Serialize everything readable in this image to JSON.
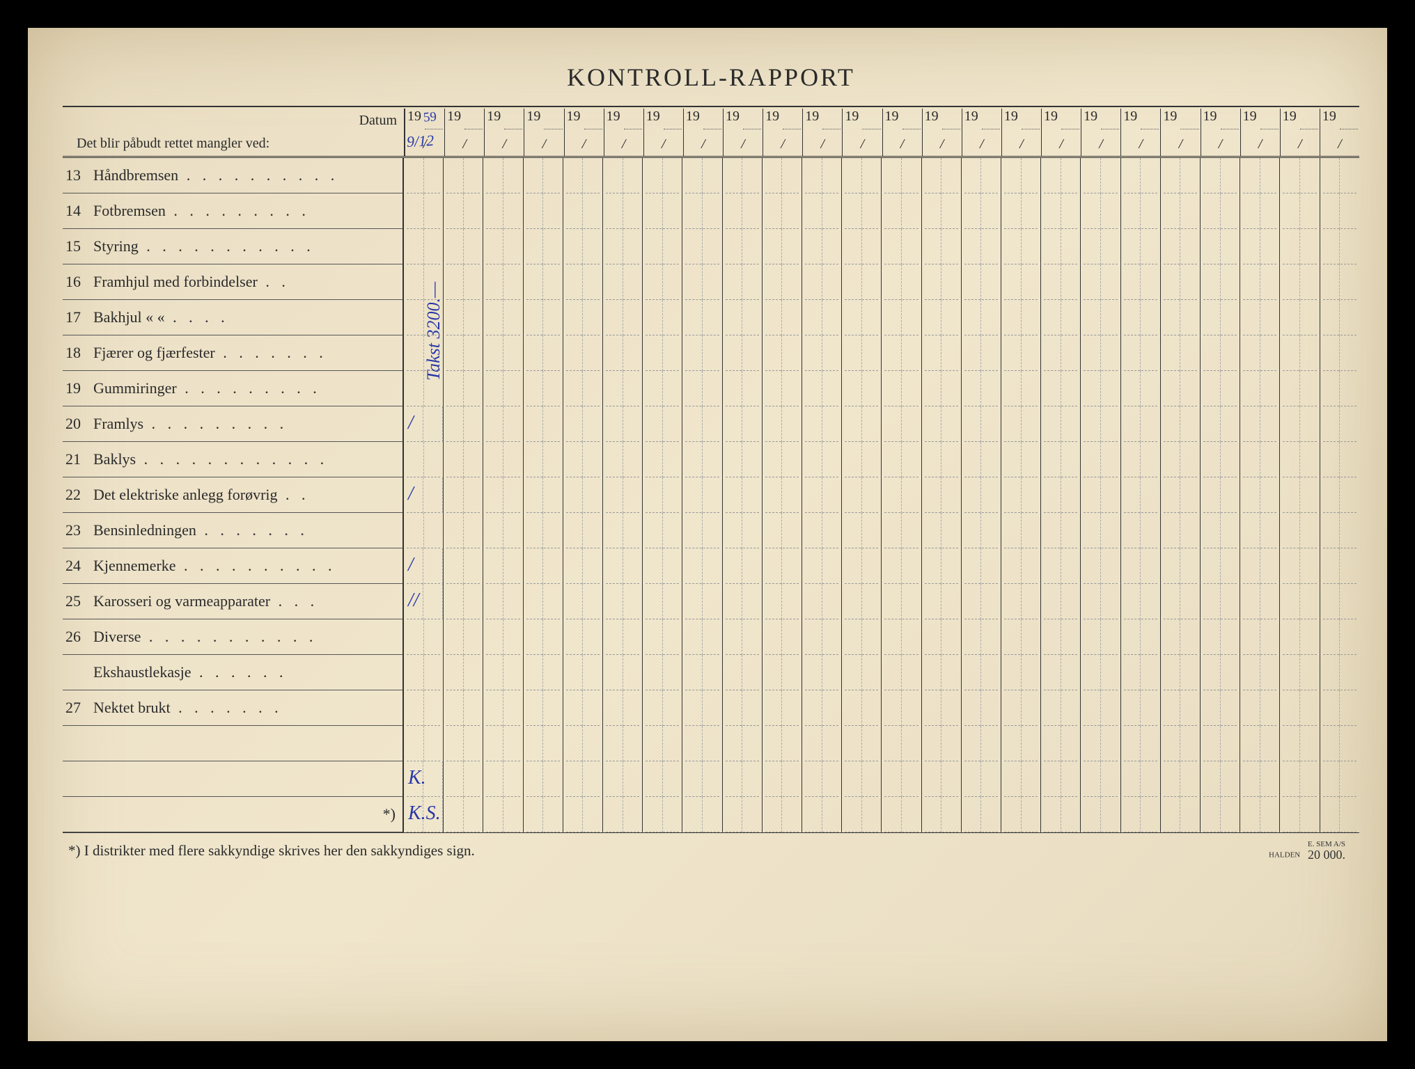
{
  "title": "KONTROLL-RAPPORT",
  "header": {
    "datum_label": "Datum",
    "mangler_label": "Det blir påbudt rettet mangler ved:",
    "year_prefix": "19",
    "date_slash": "/",
    "num_date_columns": 24,
    "handwritten_year_suffix": "59",
    "handwritten_date": "9/12"
  },
  "rows": [
    {
      "num": "13",
      "text": "Håndbremsen",
      "dots": " .  .  .  .  .  .  .  .  .  ."
    },
    {
      "num": "14",
      "text": "Fotbremsen",
      "dots": "  .  .  .  .    .  .  .  .  ."
    },
    {
      "num": "15",
      "text": "Styring",
      "dots": "   .  .  .  .  .  .  .  .  .  .  ."
    },
    {
      "num": "16",
      "text": "Framhjul med forbindelser",
      "dots": "   .     ."
    },
    {
      "num": "17",
      "text": "Bakhjul       «           «",
      "dots": "      .  .  .  ."
    },
    {
      "num": "18",
      "text": "Fjærer og fjærfester",
      "dots": " .  .  .  .  .  .  ."
    },
    {
      "num": "19",
      "text": "Gummiringer",
      "dots": " .     .  .  .  .  .  .  .  ."
    },
    {
      "num": "20",
      "text": "Framlys",
      "dots": " .    .  .  .  .  .  .  .  ."
    },
    {
      "num": "21",
      "text": "Baklys",
      "dots": " .  .  .  .  .  .  .  .  .  .  .  ."
    },
    {
      "num": "22",
      "text": "Det elektriske anlegg forøvrig",
      "dots": "   .  ."
    },
    {
      "num": "23",
      "text": "Bensinledningen",
      "dots": "  .  .  .  .  .  .  ."
    },
    {
      "num": "24",
      "text": "Kjennemerke",
      "dots": " .  .  .  .  .  .  .  .  .  ."
    },
    {
      "num": "25",
      "text": "Karosseri og varmeapparater",
      "dots": " .  .  ."
    },
    {
      "num": "26",
      "text": "Diverse",
      "dots": "  .  .  .  .  .  .  .  .  .  .  ."
    },
    {
      "num": "",
      "text": "Ekshaustlekasje",
      "dots": " .    .  .  .  .   ."
    },
    {
      "num": "27",
      "text": "Nektet brukt",
      "dots": " .  .  .     .  .  .  ."
    },
    {
      "num": "",
      "text": "",
      "dots": ""
    },
    {
      "num": "",
      "text": "",
      "dots": ""
    },
    {
      "num": "",
      "text": "",
      "dots": "",
      "star": "*)"
    }
  ],
  "handwritten": {
    "vertical_text": "Takst 3200.—",
    "marks": [
      {
        "row": 7,
        "text": "/"
      },
      {
        "row": 9,
        "text": "/"
      },
      {
        "row": 11,
        "text": "/"
      },
      {
        "row": 12,
        "text": "//"
      },
      {
        "row": 17,
        "text": "K."
      },
      {
        "row": 18,
        "text": "K.S."
      }
    ]
  },
  "footnote": {
    "text": "*)   I distrikter med flere sakkyndige skrives her den sakkyndiges sign.",
    "printer_line1": "E. SEM A/S",
    "printer_line2": "HALDEN",
    "printer_num": "20 000."
  },
  "colors": {
    "paper_bg": "#ede2c8",
    "text": "#2a2a2a",
    "rule": "#333333",
    "dash": "#999999",
    "handwriting": "#2838a8"
  }
}
